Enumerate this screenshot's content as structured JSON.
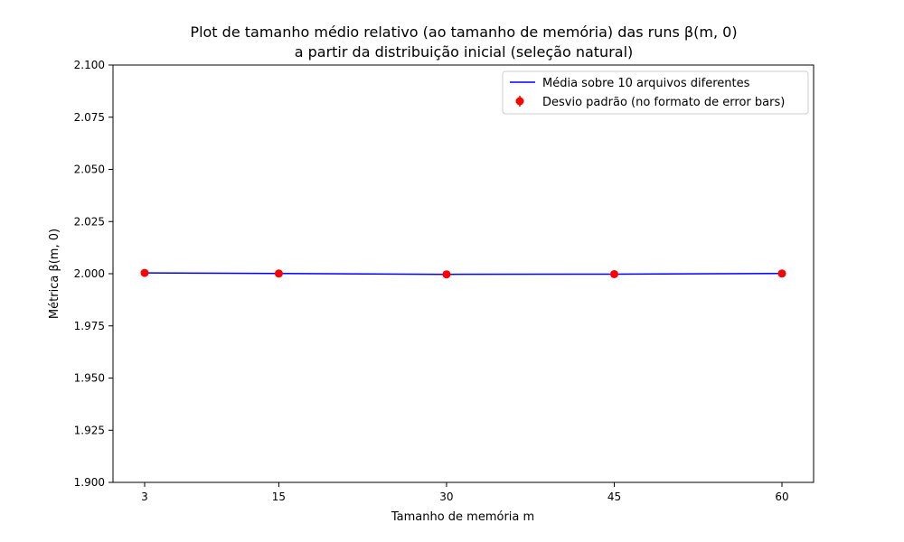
{
  "chart_data": {
    "type": "line",
    "title_line1": "Plot de tamanho médio relativo (ao tamanho de memória) das runs β(m, 0)",
    "title_line2": "a partir da distribuição inicial (seleção natural)",
    "xlabel": "Tamanho de memória m",
    "ylabel": "Métrica β(m, 0)",
    "x": [
      3,
      15,
      30,
      45,
      60
    ],
    "xticks": [
      "3",
      "15",
      "30",
      "45",
      "60"
    ],
    "ylim": [
      1.9,
      2.1
    ],
    "yticks": [
      "1.900",
      "1.925",
      "1.950",
      "1.975",
      "2.000",
      "2.025",
      "2.050",
      "2.075",
      "2.100"
    ],
    "grid": false,
    "legend_position": "top-right",
    "series": [
      {
        "name": "Média sobre 10 arquivos diferentes",
        "kind": "line",
        "color": "#0000ff",
        "values": [
          2.0004,
          2.0001,
          1.9997,
          1.9998,
          2.0001
        ]
      },
      {
        "name": "Desvio padrão (no formato de error bars)",
        "kind": "errorbar",
        "color": "#ff0000",
        "values": [
          2.0004,
          2.0001,
          1.9997,
          1.9998,
          2.0001
        ],
        "errors": [
          0.0003,
          0.0003,
          0.0003,
          0.0003,
          0.0003
        ]
      }
    ]
  }
}
